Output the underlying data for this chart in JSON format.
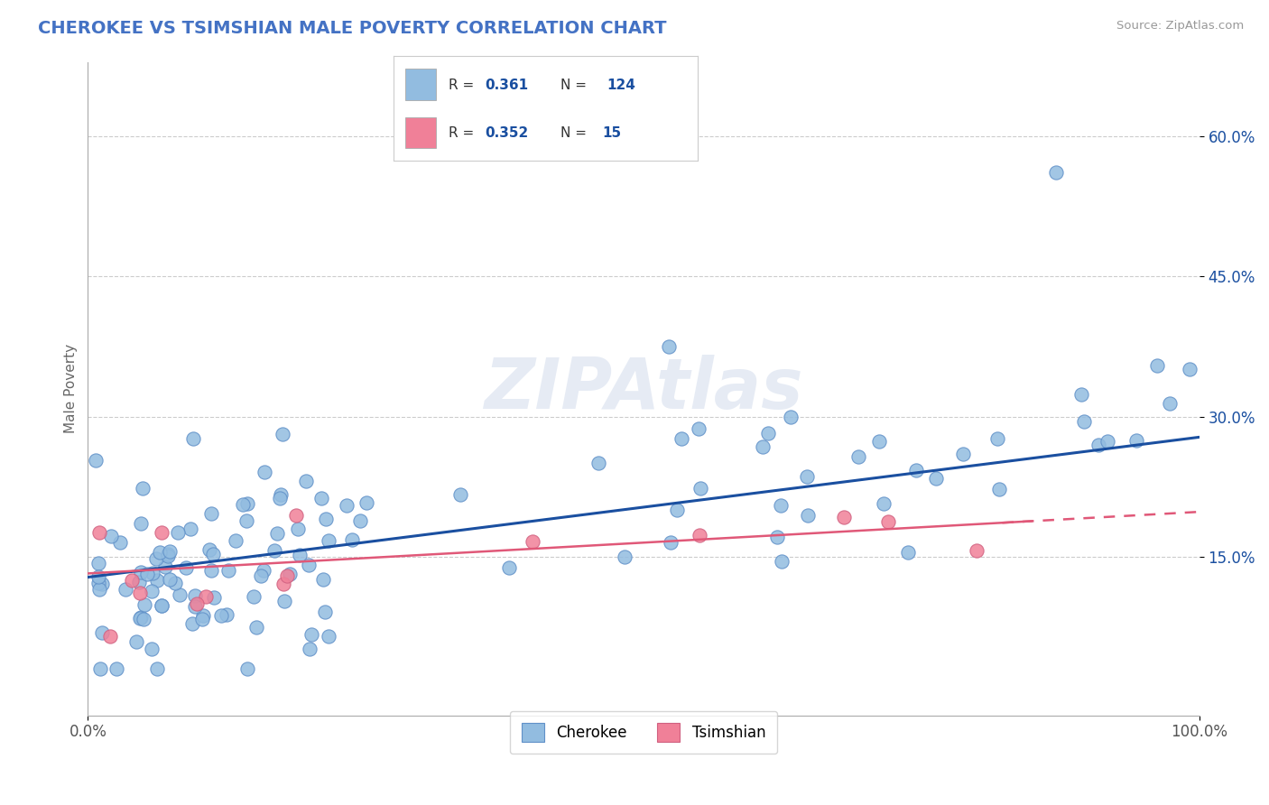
{
  "title": "CHEROKEE VS TSIMSHIAN MALE POVERTY CORRELATION CHART",
  "source_text": "Source: ZipAtlas.com",
  "ylabel": "Male Poverty",
  "x_tick_labels": [
    "0.0%",
    "100.0%"
  ],
  "y_tick_labels": [
    "15.0%",
    "30.0%",
    "45.0%",
    "60.0%"
  ],
  "y_tick_values": [
    0.15,
    0.3,
    0.45,
    0.6
  ],
  "xlim": [
    0.0,
    1.0
  ],
  "ylim": [
    -0.02,
    0.68
  ],
  "cherokee_color": "#92bce0",
  "cherokee_edge_color": "#6090c8",
  "cherokee_line_color": "#1a4fa0",
  "tsimshian_color": "#f08098",
  "tsimshian_edge_color": "#d06080",
  "tsimshian_line_color": "#e05878",
  "background_color": "#ffffff",
  "grid_color": "#cccccc",
  "title_color": "#4472c4",
  "legend_label_cherokee": "Cherokee",
  "legend_label_tsimshian": "Tsimshian",
  "cherokee_R": 0.361,
  "cherokee_N": 124,
  "tsimshian_R": 0.352,
  "tsimshian_N": 15,
  "cherokee_trend_x0": 0.0,
  "cherokee_trend_y0": 0.128,
  "cherokee_trend_x1": 1.0,
  "cherokee_trend_y1": 0.278,
  "tsimshian_trend_x0": 0.0,
  "tsimshian_trend_y0": 0.132,
  "tsimshian_trend_x1": 1.0,
  "tsimshian_trend_y1": 0.198,
  "watermark_text": "ZIPAtlas",
  "figsize": [
    14.06,
    8.92
  ],
  "dpi": 100
}
